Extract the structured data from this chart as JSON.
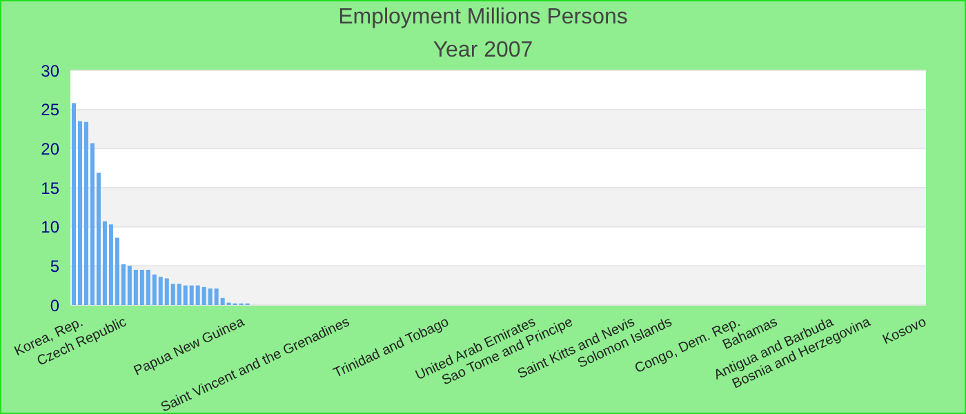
{
  "chart_data": {
    "type": "bar",
    "title": "Employment Millions Persons",
    "subtitle": "Year 2007",
    "categories": [
      null,
      "Korea, Rep.",
      null,
      null,
      null,
      null,
      null,
      null,
      "Czech Republic",
      null,
      null,
      null,
      null,
      null,
      null,
      null,
      null,
      null,
      null,
      null,
      null,
      null,
      null,
      null,
      null,
      null,
      null,
      "Papua New Guinea",
      null,
      null,
      null,
      null,
      null,
      null,
      null,
      null,
      null,
      null,
      null,
      null,
      null,
      null,
      null,
      null,
      "Saint Vincent and the Grenadines",
      null,
      null,
      null,
      null,
      null,
      null,
      null,
      null,
      null,
      null,
      null,
      null,
      null,
      null,
      null,
      "Trinidad and Tobago",
      null,
      null,
      null,
      null,
      null,
      null,
      null,
      null,
      null,
      null,
      null,
      null,
      null,
      "United Arab Emirates",
      null,
      null,
      null,
      null,
      null,
      "Sao Tome and Principe",
      null,
      null,
      null,
      null,
      null,
      null,
      null,
      null,
      null,
      "Saint Kitts and Nevis",
      null,
      null,
      null,
      null,
      null,
      "Solomon Islands",
      null,
      null,
      null,
      null,
      null,
      null,
      null,
      null,
      null,
      null,
      "Congo, Dem. Rep.",
      null,
      null,
      null,
      null,
      null,
      "Bahamas",
      null,
      null,
      null,
      null,
      null,
      null,
      null,
      null,
      "Antigua and Barbuda",
      null,
      null,
      null,
      null,
      null,
      "Bosnia and Herzegovina",
      null,
      null,
      null,
      null,
      null,
      null,
      null,
      null,
      "Kosovo"
    ],
    "values": [
      25.8,
      23.5,
      23.4,
      20.7,
      16.9,
      10.7,
      10.3,
      8.6,
      5.2,
      5.0,
      4.5,
      4.5,
      4.5,
      3.9,
      3.6,
      3.4,
      2.7,
      2.7,
      2.5,
      2.5,
      2.5,
      2.3,
      2.1,
      2.1,
      0.9,
      0.3,
      0.2,
      0.2,
      0.2,
      null,
      null,
      null,
      null,
      null,
      null,
      null,
      null,
      null,
      null,
      null,
      null,
      null,
      null,
      null,
      null,
      null,
      null,
      null,
      null,
      null,
      null,
      null,
      null,
      null,
      null,
      null,
      null,
      null,
      null,
      null,
      null,
      null,
      null,
      null,
      null,
      null,
      null,
      null,
      null,
      null,
      null,
      null,
      null,
      null,
      null,
      null,
      null,
      null,
      null,
      null,
      null,
      null,
      null,
      null,
      null,
      null,
      null,
      null,
      null,
      null,
      null,
      null,
      null,
      null,
      null,
      null,
      null,
      null,
      null,
      null,
      null,
      null,
      null,
      null,
      null,
      null,
      null,
      null,
      null,
      null,
      null,
      null,
      null,
      null,
      null,
      null,
      null,
      null,
      null,
      null,
      null,
      null,
      null,
      null,
      null,
      null,
      null,
      null,
      null,
      null,
      null,
      null,
      null,
      null,
      null,
      null,
      null,
      null
    ],
    "color": "#63aaf0",
    "ylim": [
      0,
      30
    ],
    "yticks": [
      0,
      5,
      10,
      15,
      20,
      25,
      30
    ],
    "grid": true
  }
}
